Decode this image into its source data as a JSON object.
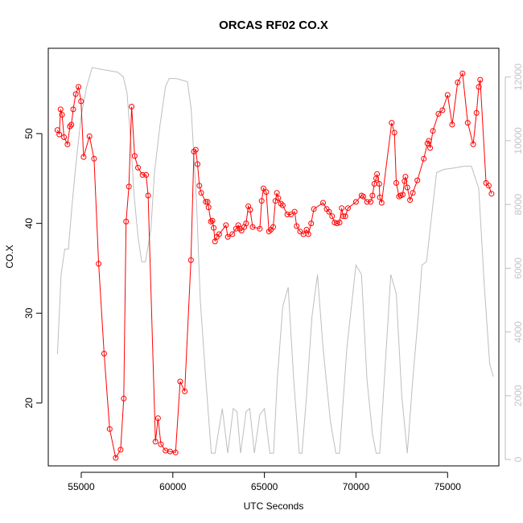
{
  "chart_data": {
    "type": "line",
    "title": "ORCAS RF02 CO.X",
    "xlabel": "UTC Seconds",
    "ylabel": "CO.X",
    "xlim": [
      53200,
      77800
    ],
    "ylim": [
      13,
      59.5
    ],
    "y2lim": [
      -200,
      12900
    ],
    "x_ticks": [
      55000,
      60000,
      65000,
      70000,
      75000
    ],
    "y_ticks": [
      20,
      30,
      40,
      50
    ],
    "y2_ticks": [
      0,
      2000,
      4000,
      6000,
      8000,
      10000,
      12000
    ],
    "colors": {
      "co": "#ff0000",
      "altitude": "#bebebe",
      "axis": "#000000",
      "axis_right": "#bebebe"
    },
    "series": [
      {
        "style": "line+points",
        "points": [
          [
            53700,
            50.4
          ],
          [
            53800,
            49.9
          ],
          [
            53870,
            52.7
          ],
          [
            53950,
            52.1
          ],
          [
            54060,
            49.6
          ],
          [
            54250,
            48.8
          ],
          [
            54380,
            50.8
          ],
          [
            54460,
            51.0
          ],
          [
            54560,
            52.7
          ],
          [
            54700,
            54.4
          ],
          [
            54850,
            55.2
          ],
          [
            54990,
            53.6
          ],
          [
            55130,
            47.4
          ],
          [
            55450,
            49.7
          ],
          [
            55700,
            47.2
          ],
          [
            55950,
            35.5
          ],
          [
            56250,
            25.5
          ],
          [
            56550,
            17.1
          ],
          [
            56880,
            13.9
          ],
          [
            57150,
            14.8
          ],
          [
            57320,
            20.5
          ],
          [
            57450,
            40.2
          ],
          [
            57600,
            44.1
          ],
          [
            57750,
            53.0
          ],
          [
            57920,
            47.5
          ],
          [
            58100,
            46.2
          ],
          [
            58350,
            45.4
          ],
          [
            58540,
            45.4
          ],
          [
            58650,
            43.1
          ],
          [
            59050,
            15.7
          ],
          [
            59190,
            18.3
          ],
          [
            59350,
            15.4
          ],
          [
            59600,
            14.7
          ],
          [
            59850,
            14.6
          ],
          [
            60150,
            14.5
          ],
          [
            60400,
            22.4
          ],
          [
            60650,
            21.3
          ],
          [
            60990,
            35.9
          ],
          [
            61150,
            48.0
          ],
          [
            61250,
            48.2
          ],
          [
            61350,
            46.6
          ],
          [
            61450,
            44.2
          ],
          [
            61550,
            43.4
          ],
          [
            61800,
            42.4
          ],
          [
            61900,
            42.4
          ],
          [
            61950,
            41.8
          ],
          [
            62080,
            40.2
          ],
          [
            62160,
            40.3
          ],
          [
            62230,
            39.5
          ],
          [
            62300,
            38.0
          ],
          [
            62400,
            38.5
          ],
          [
            62530,
            38.8
          ],
          [
            62900,
            39.8
          ],
          [
            63000,
            38.5
          ],
          [
            63250,
            38.8
          ],
          [
            63450,
            39.4
          ],
          [
            63570,
            39.8
          ],
          [
            63650,
            39.4
          ],
          [
            63750,
            39.2
          ],
          [
            63900,
            39.6
          ],
          [
            64000,
            40.0
          ],
          [
            64120,
            41.9
          ],
          [
            64220,
            41.5
          ],
          [
            64360,
            39.6
          ],
          [
            64750,
            39.4
          ],
          [
            64850,
            42.5
          ],
          [
            64950,
            43.9
          ],
          [
            65100,
            43.5
          ],
          [
            65250,
            39.1
          ],
          [
            65350,
            39.3
          ],
          [
            65480,
            39.6
          ],
          [
            65600,
            42.5
          ],
          [
            65680,
            43.4
          ],
          [
            65760,
            42.8
          ],
          [
            65900,
            42.2
          ],
          [
            66000,
            42.0
          ],
          [
            66250,
            41.0
          ],
          [
            66450,
            41.0
          ],
          [
            66650,
            41.3
          ],
          [
            66760,
            39.7
          ],
          [
            66950,
            39.1
          ],
          [
            67130,
            38.8
          ],
          [
            67300,
            39.3
          ],
          [
            67400,
            38.8
          ],
          [
            67550,
            40.0
          ],
          [
            67700,
            41.6
          ],
          [
            68200,
            42.3
          ],
          [
            68400,
            41.6
          ],
          [
            68530,
            41.3
          ],
          [
            68700,
            40.8
          ],
          [
            68830,
            40.1
          ],
          [
            68960,
            40.0
          ],
          [
            69100,
            40.1
          ],
          [
            69220,
            41.7
          ],
          [
            69300,
            40.8
          ],
          [
            69420,
            40.8
          ],
          [
            69560,
            41.7
          ],
          [
            70000,
            42.4
          ],
          [
            70300,
            43.1
          ],
          [
            70400,
            43.0
          ],
          [
            70600,
            42.4
          ],
          [
            70800,
            42.4
          ],
          [
            70900,
            43.1
          ],
          [
            71000,
            44.4
          ],
          [
            71100,
            45.0
          ],
          [
            71150,
            45.5
          ],
          [
            71270,
            44.4
          ],
          [
            71300,
            42.9
          ],
          [
            71400,
            42.3
          ],
          [
            71950,
            51.2
          ],
          [
            72100,
            50.1
          ],
          [
            72200,
            44.5
          ],
          [
            72350,
            43.0
          ],
          [
            72440,
            43.1
          ],
          [
            72550,
            43.2
          ],
          [
            72650,
            44.7
          ],
          [
            72700,
            45.2
          ],
          [
            72800,
            44.0
          ],
          [
            72950,
            42.6
          ],
          [
            73100,
            43.4
          ],
          [
            73350,
            44.8
          ],
          [
            73700,
            47.2
          ],
          [
            73900,
            48.9
          ],
          [
            73980,
            49.2
          ],
          [
            74050,
            48.4
          ],
          [
            74200,
            50.3
          ],
          [
            74500,
            52.2
          ],
          [
            74720,
            52.6
          ],
          [
            75000,
            54.3
          ],
          [
            75250,
            51.0
          ],
          [
            75550,
            55.7
          ],
          [
            75820,
            56.7
          ],
          [
            76100,
            51.2
          ],
          [
            76400,
            48.8
          ],
          [
            76580,
            52.3
          ],
          [
            76700,
            55.2
          ],
          [
            76780,
            56.0
          ],
          [
            77100,
            44.5
          ],
          [
            77250,
            44.2
          ],
          [
            77400,
            43.3
          ]
        ]
      },
      {
        "style": "line",
        "axis": "right",
        "points": [
          [
            53700,
            3300
          ],
          [
            53900,
            5800
          ],
          [
            54100,
            6600
          ],
          [
            54300,
            6600
          ],
          [
            54500,
            8000
          ],
          [
            54700,
            9200
          ],
          [
            55000,
            10800
          ],
          [
            55300,
            11700
          ],
          [
            55600,
            12300
          ],
          [
            56000,
            12250
          ],
          [
            56500,
            12200
          ],
          [
            57000,
            12150
          ],
          [
            57300,
            12000
          ],
          [
            57500,
            11500
          ],
          [
            57700,
            10000
          ],
          [
            57900,
            8200
          ],
          [
            58100,
            7000
          ],
          [
            58300,
            6200
          ],
          [
            58500,
            6200
          ],
          [
            58800,
            7200
          ],
          [
            59000,
            9000
          ],
          [
            59300,
            10500
          ],
          [
            59600,
            11700
          ],
          [
            59800,
            11950
          ],
          [
            60200,
            11950
          ],
          [
            60500,
            11900
          ],
          [
            60800,
            11850
          ],
          [
            61000,
            11000
          ],
          [
            61300,
            8000
          ],
          [
            61500,
            5000
          ],
          [
            61800,
            2500
          ],
          [
            62100,
            200
          ],
          [
            62300,
            200
          ],
          [
            62700,
            1600
          ],
          [
            63000,
            200
          ],
          [
            63300,
            1600
          ],
          [
            63500,
            1500
          ],
          [
            63700,
            200
          ],
          [
            64000,
            1500
          ],
          [
            64200,
            1600
          ],
          [
            64450,
            200
          ],
          [
            64750,
            1400
          ],
          [
            65000,
            1600
          ],
          [
            65300,
            200
          ],
          [
            65500,
            200
          ],
          [
            65700,
            2500
          ],
          [
            66000,
            4800
          ],
          [
            66300,
            5400
          ],
          [
            66600,
            2500
          ],
          [
            66900,
            200
          ],
          [
            67050,
            200
          ],
          [
            67300,
            2000
          ],
          [
            67600,
            4500
          ],
          [
            67900,
            5800
          ],
          [
            68200,
            3500
          ],
          [
            68600,
            1200
          ],
          [
            68900,
            200
          ],
          [
            69100,
            200
          ],
          [
            69500,
            3500
          ],
          [
            70000,
            6100
          ],
          [
            70300,
            5800
          ],
          [
            70600,
            2500
          ],
          [
            70900,
            800
          ],
          [
            71100,
            200
          ],
          [
            71300,
            200
          ],
          [
            71600,
            3000
          ],
          [
            71900,
            5800
          ],
          [
            72200,
            5200
          ],
          [
            72500,
            2000
          ],
          [
            72800,
            200
          ],
          [
            73100,
            2500
          ],
          [
            73400,
            4500
          ],
          [
            73600,
            6100
          ],
          [
            73850,
            6200
          ],
          [
            74100,
            7500
          ],
          [
            74400,
            9000
          ],
          [
            74800,
            9100
          ],
          [
            75400,
            9150
          ],
          [
            75900,
            9200
          ],
          [
            76300,
            9200
          ],
          [
            76700,
            8500
          ],
          [
            77000,
            5500
          ],
          [
            77300,
            3000
          ],
          [
            77500,
            2600
          ]
        ]
      }
    ]
  }
}
